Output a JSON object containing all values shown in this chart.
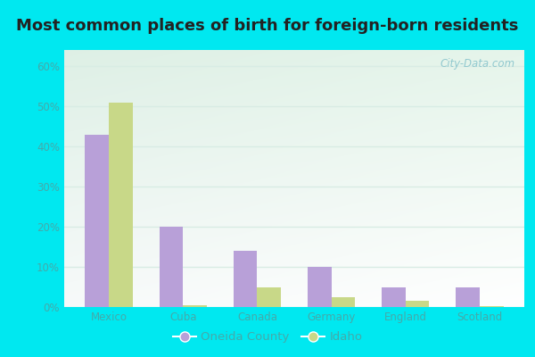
{
  "title": "Most common places of birth for foreign-born residents",
  "categories": [
    "Mexico",
    "Cuba",
    "Canada",
    "Germany",
    "England",
    "Scotland"
  ],
  "oneida_values": [
    43,
    20,
    14,
    10,
    5,
    5
  ],
  "idaho_values": [
    51,
    0.5,
    5,
    2.5,
    1.5,
    0.2
  ],
  "bar_color_oneida": "#b8a0d8",
  "bar_color_idaho": "#c8d888",
  "legend_labels": [
    "Oneida County",
    "Idaho"
  ],
  "yticks": [
    0,
    10,
    20,
    30,
    40,
    50,
    60
  ],
  "ylim": [
    0,
    64
  ],
  "background_outer": "#00e8f0",
  "background_plot_tl": "#ddeedd",
  "background_plot_br": "#eef8f4",
  "grid_color": "#d8ece4",
  "watermark": "City-Data.com",
  "title_fontsize": 13,
  "tick_fontsize": 8.5,
  "legend_fontsize": 9.5,
  "tick_color": "#44aaaa",
  "label_color": "#44aaaa"
}
